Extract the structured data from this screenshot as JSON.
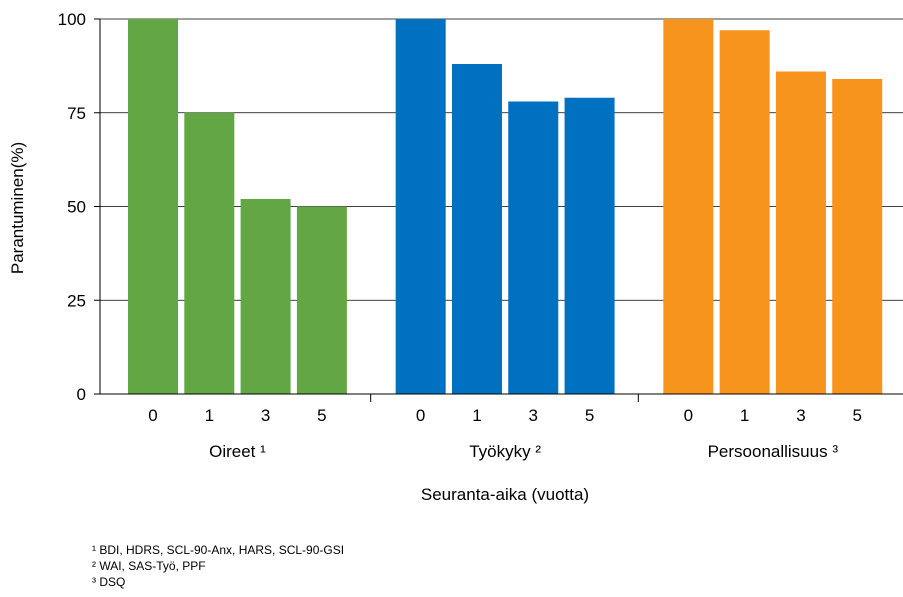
{
  "chart_data": {
    "type": "bar",
    "ylabel": "Parantuminen(%)",
    "xlabel": "Seuranta-aika (vuotta)",
    "ylim": [
      0,
      100
    ],
    "yticks": [
      0,
      25,
      50,
      75,
      100
    ],
    "grid": true,
    "groups": [
      {
        "label": "Oireet ¹",
        "color": "#62a744",
        "categories": [
          "0",
          "1",
          "3",
          "5"
        ],
        "values": [
          100,
          75,
          52,
          50
        ]
      },
      {
        "label": "Työkyky ²",
        "color": "#0070c0",
        "categories": [
          "0",
          "1",
          "3",
          "5"
        ],
        "values": [
          100,
          88,
          78,
          79
        ]
      },
      {
        "label": "Persoonallisuus ³",
        "color": "#f7941d",
        "categories": [
          "0",
          "1",
          "3",
          "5"
        ],
        "values": [
          100,
          97,
          86,
          84
        ]
      }
    ]
  },
  "footnotes": [
    "¹ BDI, HDRS, SCL-90-Anx, HARS, SCL-90-GSI",
    "² WAI, SAS-Työ, PPF",
    "³ DSQ"
  ]
}
